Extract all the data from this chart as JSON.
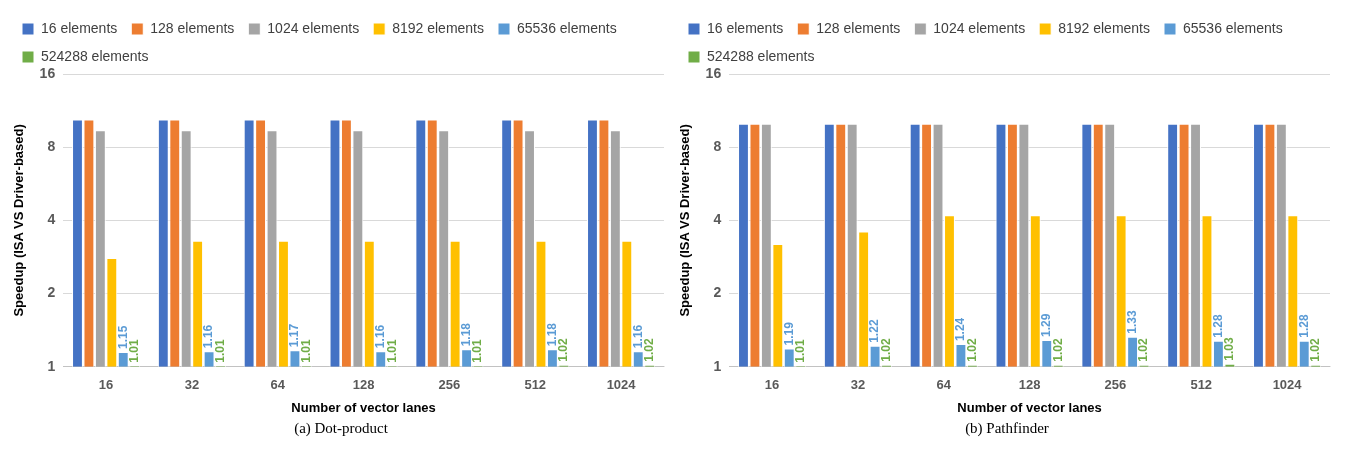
{
  "chart_data": [
    {
      "type": "bar",
      "categories": [
        "16",
        "32",
        "64",
        "128",
        "256",
        "512",
        "1024"
      ],
      "xlabel": "Number of vector lanes",
      "ylabel": "Speedup (ISA VS Driver-based)",
      "log": "y",
      "ylim": [
        1,
        16
      ],
      "yticks": [
        1,
        2,
        4,
        8,
        16
      ],
      "grid": "y",
      "legend": "top",
      "annotations": [
        "(a) Dot-product"
      ],
      "series": [
        {
          "name": "16 elements",
          "color": "#4472c4",
          "values": [
            10.4,
            10.4,
            10.4,
            10.4,
            10.4,
            10.4,
            10.4
          ]
        },
        {
          "name": "128 elements",
          "color": "#ed7d31",
          "values": [
            10.4,
            10.4,
            10.4,
            10.4,
            10.4,
            10.4,
            10.4
          ]
        },
        {
          "name": "1024 elements",
          "color": "#a5a5a5",
          "values": [
            9.4,
            9.4,
            9.4,
            9.4,
            9.4,
            9.4,
            9.4
          ]
        },
        {
          "name": "8192 elements",
          "color": "#ffc000",
          "values": [
            2.8,
            3.3,
            3.3,
            3.3,
            3.3,
            3.3,
            3.3
          ]
        },
        {
          "name": "65536 elements",
          "color": "#5b9bd5",
          "values": [
            1.15,
            1.16,
            1.17,
            1.16,
            1.18,
            1.18,
            1.16
          ],
          "value_labels": [
            "1.15",
            "1.16",
            "1.17",
            "1.16",
            "1.18",
            "1.18",
            "1.16"
          ]
        },
        {
          "name": "524288 elements",
          "color": "#70ad47",
          "values": [
            1.01,
            1.01,
            1.01,
            1.01,
            1.01,
            1.02,
            1.02
          ],
          "value_labels": [
            "1.01",
            "1.01",
            "1.01",
            "1.01",
            "1.01",
            "1.02",
            "1.02"
          ]
        }
      ]
    },
    {
      "type": "bar",
      "categories": [
        "16",
        "32",
        "64",
        "128",
        "256",
        "512",
        "1024"
      ],
      "xlabel": "Number of vector lanes",
      "ylabel": "Speedup (ISA VS Driver-based)",
      "log": "y",
      "ylim": [
        1,
        16
      ],
      "yticks": [
        1,
        2,
        4,
        8,
        16
      ],
      "grid": "y",
      "legend": "top",
      "annotations": [
        "(b) Pathfinder"
      ],
      "series": [
        {
          "name": "16 elements",
          "color": "#4472c4",
          "values": [
            10,
            10,
            10,
            10,
            10,
            10,
            10
          ]
        },
        {
          "name": "128 elements",
          "color": "#ed7d31",
          "values": [
            10,
            10,
            10,
            10,
            10,
            10,
            10
          ]
        },
        {
          "name": "1024 elements",
          "color": "#a5a5a5",
          "values": [
            10,
            10,
            10,
            10,
            10,
            10,
            10
          ]
        },
        {
          "name": "8192 elements",
          "color": "#ffc000",
          "values": [
            3.2,
            3.6,
            4.2,
            4.2,
            4.2,
            4.2,
            4.2
          ]
        },
        {
          "name": "65536 elements",
          "color": "#5b9bd5",
          "values": [
            1.19,
            1.22,
            1.24,
            1.29,
            1.33,
            1.28,
            1.28
          ],
          "value_labels": [
            "1.19",
            "1.22",
            "1.24",
            "1.29",
            "1.33",
            "1.28",
            "1.28"
          ]
        },
        {
          "name": "524288 elements",
          "color": "#70ad47",
          "values": [
            1.01,
            1.02,
            1.02,
            1.02,
            1.02,
            1.03,
            1.02
          ],
          "value_labels": [
            "1.01",
            "1.02",
            "1.02",
            "1.02",
            "1.02",
            "1.03",
            "1.02"
          ]
        }
      ]
    }
  ]
}
